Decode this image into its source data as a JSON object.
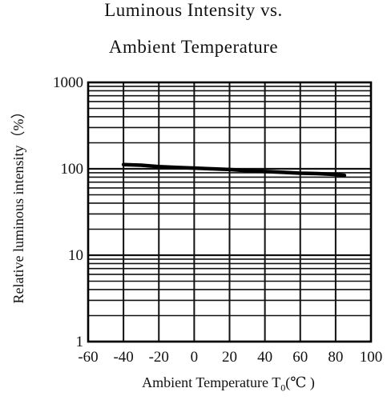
{
  "chart_data": {
    "type": "line",
    "title": "Luminous Intensity vs.",
    "subtitle": "Ambient Temperature",
    "ylabel": "Relative luminous intensity（%）",
    "xlabel_main": "Ambient Temperature T",
    "xlabel_sub": "0",
    "xlabel_unit": "(℃ )",
    "xlim": [
      -60,
      100
    ],
    "ylim": [
      1,
      1000
    ],
    "yscale": "log",
    "grid": true,
    "x_ticks": [
      "-60",
      "-40",
      "-20",
      "0",
      "20",
      "40",
      "60",
      "80",
      "100"
    ],
    "y_ticks": [
      "1",
      "10",
      "100",
      "1000"
    ],
    "series": [
      {
        "x": [
          -40,
          -30,
          -20,
          -10,
          0,
          10,
          20,
          30,
          40,
          50,
          60,
          70,
          80,
          85
        ],
        "y": [
          112,
          110,
          106,
          104,
          102,
          100,
          98,
          95,
          93,
          91,
          89,
          88,
          86,
          84
        ]
      }
    ],
    "colors": {
      "line": "#000000",
      "grid": "#111111"
    }
  }
}
